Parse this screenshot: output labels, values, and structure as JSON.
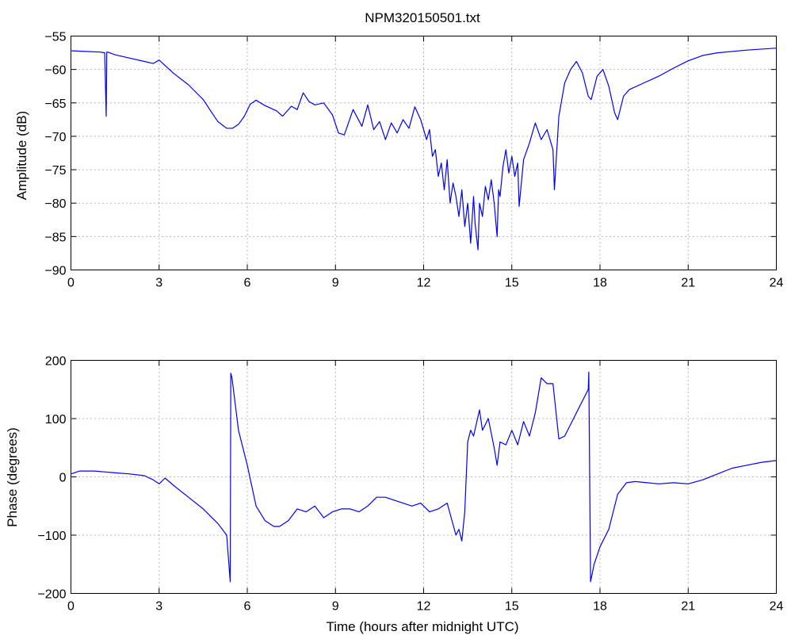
{
  "chart_data": [
    {
      "type": "line",
      "title": "NPM320150501.txt",
      "xlabel": "",
      "ylabel": "Amplitude (dB)",
      "xlim": [
        0,
        24
      ],
      "ylim": [
        -90,
        -55
      ],
      "xticks": [
        0,
        3,
        6,
        9,
        12,
        15,
        18,
        21,
        24
      ],
      "yticks": [
        -55,
        -60,
        -65,
        -70,
        -75,
        -80,
        -85,
        -90
      ],
      "grid": true,
      "line_color": "#0000ff",
      "x": [
        0,
        0.5,
        1.0,
        1.15,
        1.2,
        1.22,
        1.25,
        1.5,
        2.0,
        2.5,
        2.8,
        3.0,
        3.2,
        3.5,
        4.0,
        4.5,
        4.8,
        5.0,
        5.3,
        5.5,
        5.7,
        5.9,
        6.1,
        6.3,
        6.6,
        6.9,
        7.0,
        7.2,
        7.5,
        7.7,
        7.9,
        8.1,
        8.3,
        8.6,
        8.9,
        9.1,
        9.3,
        9.6,
        9.9,
        10.1,
        10.3,
        10.5,
        10.7,
        10.9,
        11.1,
        11.3,
        11.5,
        11.7,
        11.9,
        12.1,
        12.2,
        12.3,
        12.4,
        12.5,
        12.6,
        12.7,
        12.8,
        12.9,
        13.0,
        13.1,
        13.2,
        13.3,
        13.4,
        13.5,
        13.6,
        13.7,
        13.75,
        13.85,
        13.9,
        14.0,
        14.1,
        14.2,
        14.3,
        14.4,
        14.5,
        14.55,
        14.6,
        14.7,
        14.8,
        14.9,
        15.0,
        15.1,
        15.2,
        15.25,
        15.4,
        15.6,
        15.8,
        16.0,
        16.2,
        16.4,
        16.45,
        16.6,
        16.8,
        17.0,
        17.2,
        17.4,
        17.6,
        17.7,
        17.9,
        18.1,
        18.3,
        18.5,
        18.6,
        18.8,
        19.0,
        19.5,
        20.0,
        20.5,
        21.0,
        21.5,
        22.0,
        23.0,
        24.0
      ],
      "series": [
        {
          "values": [
            -57.2,
            -57.3,
            -57.4,
            -57.5,
            -67.0,
            -57.4,
            -57.4,
            -57.8,
            -58.3,
            -58.8,
            -59.1,
            -58.6,
            -59.4,
            -60.6,
            -62.3,
            -64.5,
            -66.5,
            -67.8,
            -68.8,
            -68.8,
            -68.2,
            -67.0,
            -65.2,
            -64.6,
            -65.4,
            -66.0,
            -66.2,
            -67.0,
            -65.5,
            -66.0,
            -63.5,
            -64.8,
            -65.3,
            -65.0,
            -66.8,
            -69.5,
            -69.8,
            -66.0,
            -68.5,
            -65.3,
            -69.0,
            -67.8,
            -70.5,
            -68.0,
            -69.5,
            -67.5,
            -68.8,
            -65.6,
            -67.5,
            -70.5,
            -69.0,
            -73.0,
            -72.0,
            -76.0,
            -74.0,
            -78.0,
            -73.5,
            -80.0,
            -77.0,
            -79.0,
            -82.0,
            -78.0,
            -83.5,
            -80.0,
            -86.0,
            -79.0,
            -83.0,
            -87.0,
            -80.0,
            -82.0,
            -77.5,
            -79.5,
            -76.5,
            -80.0,
            -85.0,
            -78.0,
            -79.0,
            -74.5,
            -72.0,
            -75.5,
            -73.0,
            -76.0,
            -74.0,
            -80.5,
            -73.5,
            -71.0,
            -68.0,
            -70.5,
            -69.0,
            -72.0,
            -78.0,
            -67.0,
            -62.0,
            -60.0,
            -58.8,
            -60.5,
            -64.0,
            -64.5,
            -61.0,
            -60.0,
            -62.5,
            -66.5,
            -67.5,
            -64.0,
            -63.0,
            -62.0,
            -61.0,
            -59.8,
            -58.7,
            -57.9,
            -57.5,
            -57.1,
            -56.8
          ]
        }
      ]
    },
    {
      "type": "line",
      "title": "",
      "xlabel": "Time (hours after midnight UTC)",
      "ylabel": "Phase (degrees)",
      "xlim": [
        0,
        24
      ],
      "ylim": [
        -200,
        200
      ],
      "xticks": [
        0,
        3,
        6,
        9,
        12,
        15,
        18,
        21,
        24
      ],
      "yticks": [
        200,
        100,
        0,
        -100,
        -200
      ],
      "grid": true,
      "line_color": "#0000ff",
      "x": [
        0,
        0.3,
        0.8,
        1.5,
        2.0,
        2.5,
        2.8,
        3.0,
        3.2,
        3.5,
        4.0,
        4.5,
        5.0,
        5.3,
        5.42,
        5.44,
        5.48,
        5.7,
        6.0,
        6.3,
        6.6,
        6.9,
        7.1,
        7.4,
        7.7,
        8.0,
        8.3,
        8.6,
        8.9,
        9.2,
        9.5,
        9.8,
        10.1,
        10.4,
        10.7,
        11.0,
        11.3,
        11.6,
        11.9,
        12.2,
        12.5,
        12.8,
        13.1,
        13.2,
        13.3,
        13.4,
        13.5,
        13.6,
        13.7,
        13.9,
        14.0,
        14.2,
        14.4,
        14.5,
        14.6,
        14.8,
        15.0,
        15.2,
        15.4,
        15.6,
        15.8,
        16.0,
        16.2,
        16.4,
        16.6,
        16.8,
        17.0,
        17.3,
        17.6,
        17.62,
        17.68,
        17.8,
        18.0,
        18.3,
        18.6,
        18.9,
        19.2,
        19.6,
        20.0,
        20.5,
        21.0,
        21.5,
        22.0,
        22.5,
        23.0,
        23.5,
        24.0
      ],
      "series": [
        {
          "values": [
            5,
            10,
            10,
            7,
            5,
            2,
            -5,
            -12,
            -2,
            -15,
            -35,
            -55,
            -80,
            -100,
            -180,
            178,
            170,
            80,
            20,
            -50,
            -75,
            -85,
            -85,
            -75,
            -55,
            -60,
            -50,
            -70,
            -60,
            -55,
            -55,
            -60,
            -50,
            -35,
            -35,
            -40,
            -45,
            -50,
            -45,
            -60,
            -55,
            -45,
            -100,
            -90,
            -110,
            -60,
            60,
            80,
            70,
            115,
            80,
            100,
            50,
            20,
            60,
            55,
            80,
            55,
            95,
            70,
            110,
            170,
            160,
            160,
            65,
            70,
            90,
            120,
            150,
            180,
            -180,
            -150,
            -120,
            -90,
            -30,
            -10,
            -8,
            -10,
            -12,
            -10,
            -12,
            -5,
            5,
            15,
            20,
            25,
            28
          ]
        }
      ]
    }
  ]
}
